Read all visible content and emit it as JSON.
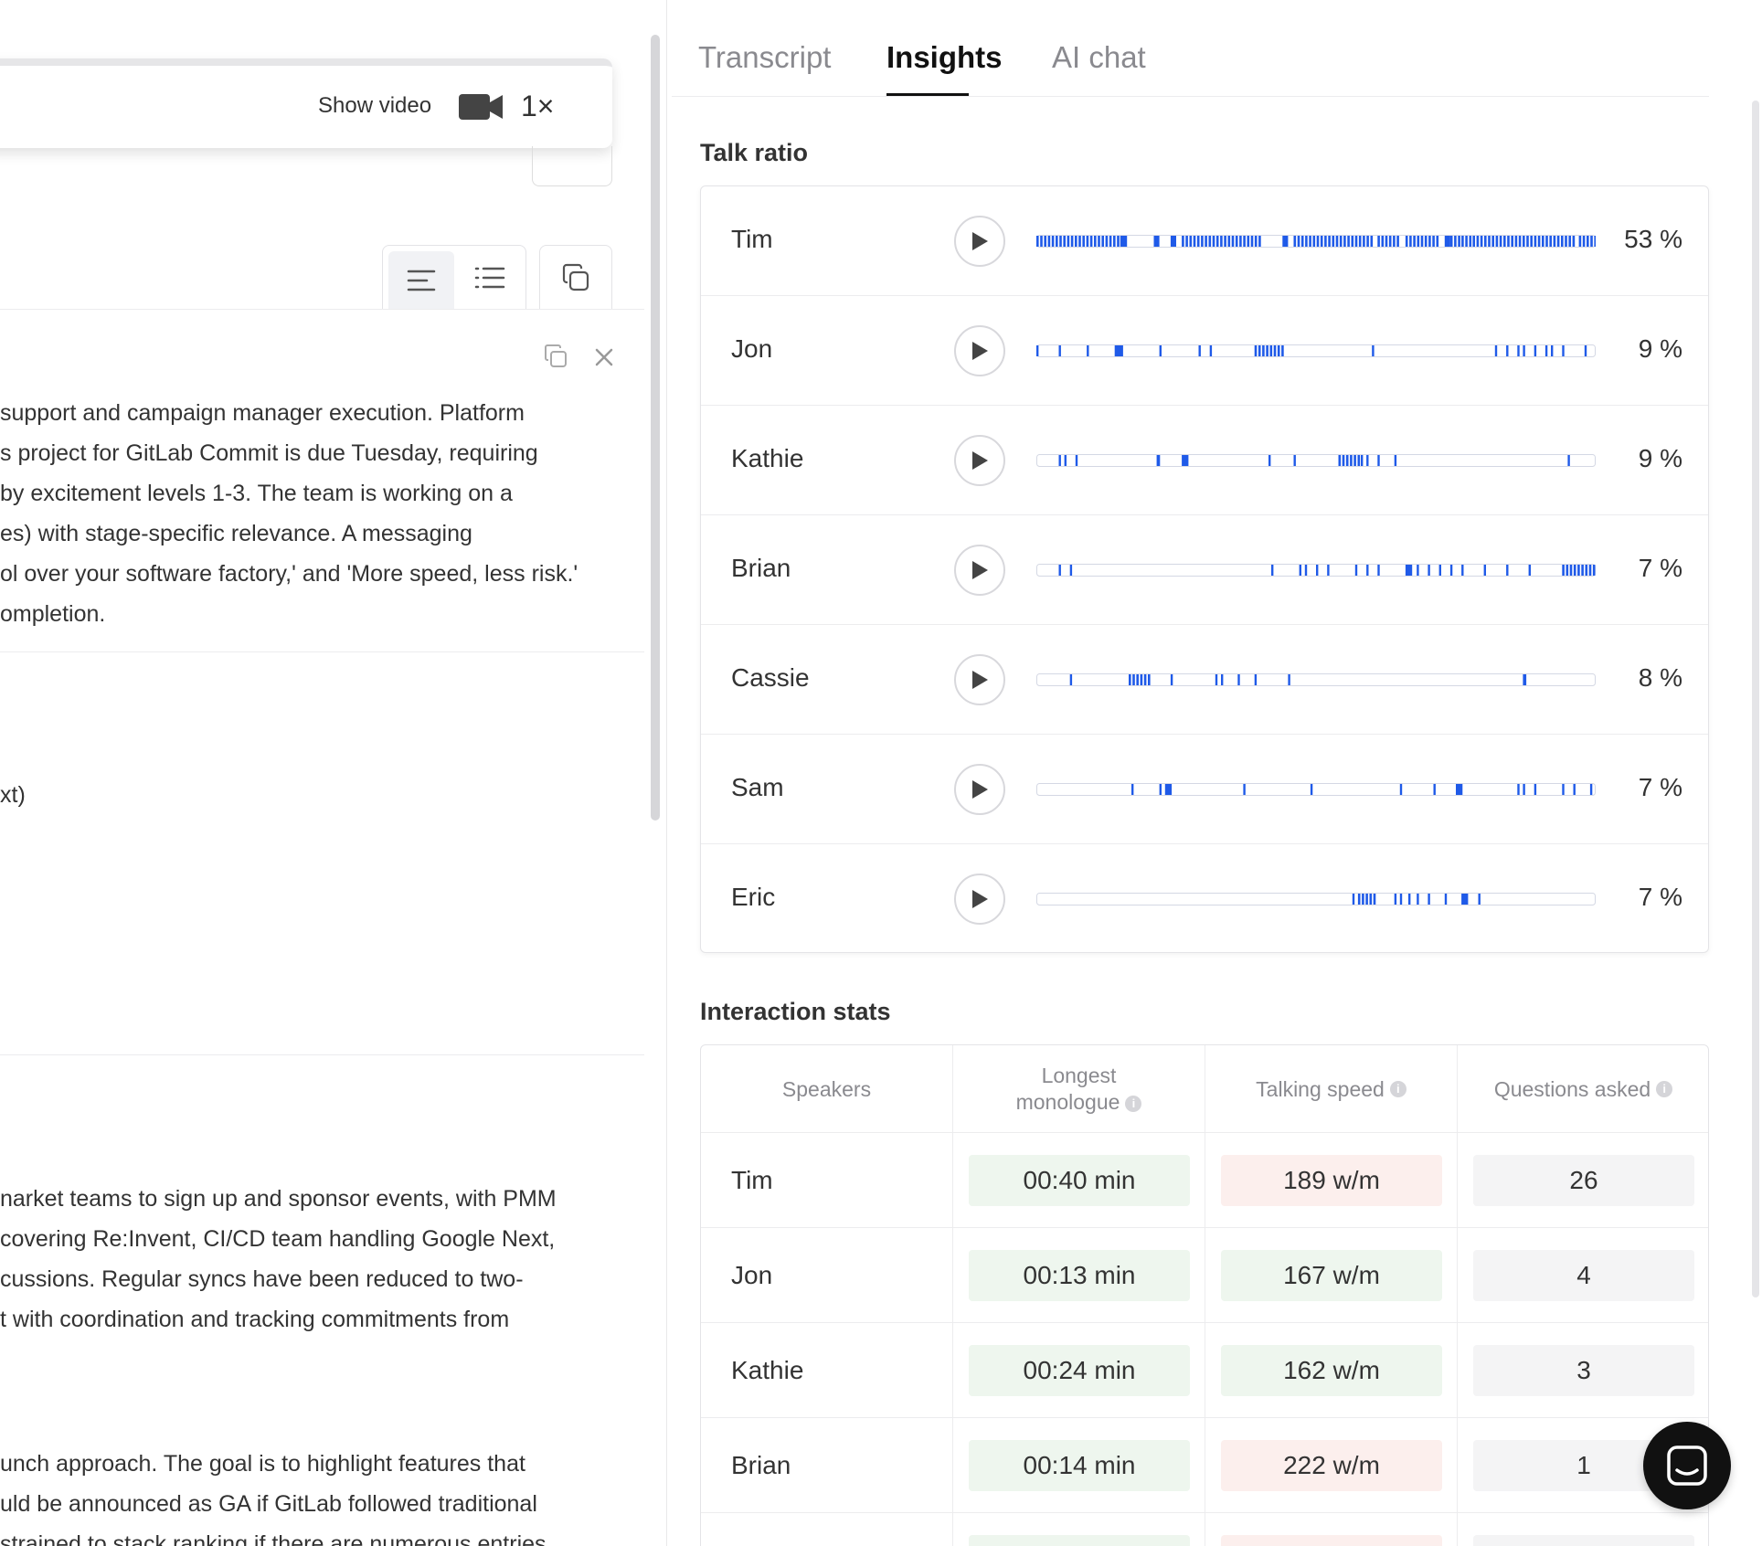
{
  "player": {
    "show_video_label": "Show video",
    "speed_label": "1×",
    "camera_icon": "video-camera-icon"
  },
  "summary": {
    "block1": [
      " support and campaign manager execution. Platform",
      "s project for GitLab Commit is due Tuesday, requiring",
      " by excitement levels 1-3. The team is working on a",
      "es) with stage-specific relevance. A messaging",
      "ol over your software factory,' and 'More speed, less risk.'",
      "ompletion."
    ],
    "fragment": "xt)",
    "block2": [
      "narket teams to sign up and sponsor events, with PMM",
      " covering Re:Invent, CI/CD team handling Google Next,",
      "cussions. Regular syncs have been reduced to two-",
      "t with coordination and tracking commitments from"
    ],
    "block3": [
      "unch approach. The goal is to highlight features that",
      "uld be announced as GA if GitLab followed traditional",
      "strained to stack ranking if there are numerous entries"
    ]
  },
  "tabs": [
    {
      "label": "Transcript",
      "active": false
    },
    {
      "label": "Insights",
      "active": true
    },
    {
      "label": "AI chat",
      "active": false
    }
  ],
  "talk_ratio": {
    "title": "Talk ratio",
    "accent": "#1f5ae8",
    "speakers": [
      {
        "name": "Tim",
        "percent": "53 %"
      },
      {
        "name": "Jon",
        "percent": "9 %"
      },
      {
        "name": "Kathie",
        "percent": "9 %"
      },
      {
        "name": "Brian",
        "percent": "7 %"
      },
      {
        "name": "Cassie",
        "percent": "8 %"
      },
      {
        "name": "Sam",
        "percent": "7 %"
      },
      {
        "name": "Eric",
        "percent": "7 %"
      }
    ]
  },
  "interaction_stats": {
    "title": "Interaction stats",
    "columns": {
      "speakers": "Speakers",
      "longest_monologue": "Longest monologue",
      "talking_speed": "Talking speed",
      "questions_asked": "Questions asked"
    },
    "colors": {
      "good": "#eef6ee",
      "warn": "#fcefed",
      "neutral": "#f4f4f5"
    },
    "rows": [
      {
        "name": "Tim",
        "monologue": "00:40 min",
        "speed": "189 w/m",
        "speed_status": "warn",
        "questions": "26"
      },
      {
        "name": "Jon",
        "monologue": "00:13 min",
        "speed": "167 w/m",
        "speed_status": "good",
        "questions": "4"
      },
      {
        "name": "Kathie",
        "monologue": "00:24 min",
        "speed": "162 w/m",
        "speed_status": "good",
        "questions": "3"
      },
      {
        "name": "Brian",
        "monologue": "00:14 min",
        "speed": "222 w/m",
        "speed_status": "warn",
        "questions": "1"
      }
    ]
  }
}
